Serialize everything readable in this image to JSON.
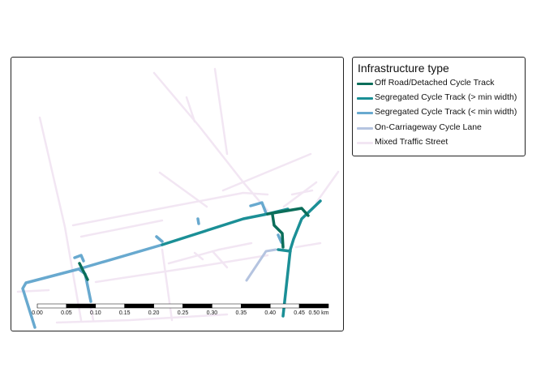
{
  "legend": {
    "title": "Infrastructure type",
    "items": [
      {
        "label": "Off Road/Detached Cycle Track",
        "color": "#0b6e5a"
      },
      {
        "label": "Segregated Cycle Track (> min width)",
        "color": "#1b8f96"
      },
      {
        "label": "Segregated Cycle Track (< min width)",
        "color": "#68a9cf"
      },
      {
        "label": "On-Carriageway Cycle Lane",
        "color": "#b5c4e0"
      },
      {
        "label": "Mixed Traffic Street",
        "color": "#f2e6f3"
      }
    ]
  },
  "scale_bar": {
    "labels": [
      "0.00",
      "0.05",
      "0.10",
      "0.15",
      "0.20",
      "0.25",
      "0.30",
      "0.35",
      "0.40",
      "0.45",
      "0.50 km"
    ]
  }
}
